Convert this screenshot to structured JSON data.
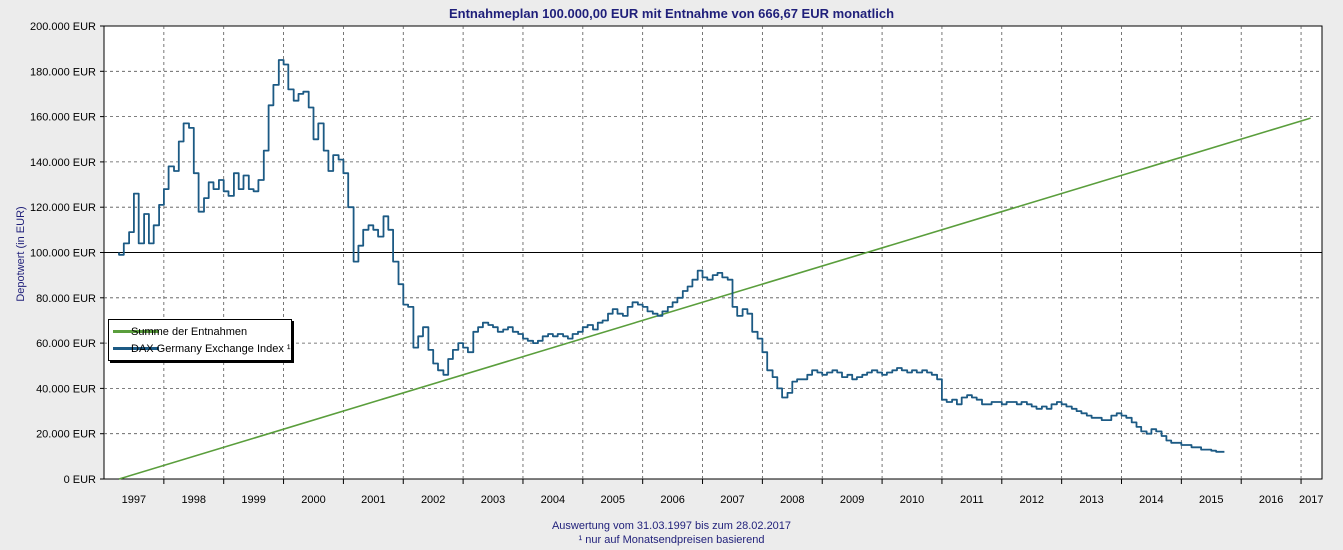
{
  "chart_data": {
    "type": "line",
    "title": "Entnahmeplan 100.000,00 EUR mit Entnahme von 666,67 EUR monatlich",
    "ylabel": "Depotwert (in EUR)",
    "xlabel": "",
    "ylim": [
      0,
      200000
    ],
    "xlim": [
      1997.0,
      2017.35
    ],
    "y_ticks": [
      0,
      20000,
      40000,
      60000,
      80000,
      100000,
      120000,
      140000,
      160000,
      180000,
      200000
    ],
    "y_tick_labels": [
      "0 EUR",
      "20.000 EUR",
      "40.000 EUR",
      "60.000 EUR",
      "80.000 EUR",
      "100.000 EUR",
      "120.000 EUR",
      "140.000 EUR",
      "160.000 EUR",
      "180.000 EUR",
      "200.000 EUR"
    ],
    "x_tick_labels": [
      "1997",
      "1998",
      "1999",
      "2000",
      "2001",
      "2002",
      "2003",
      "2004",
      "2005",
      "2006",
      "2007",
      "2008",
      "2009",
      "2010",
      "2011",
      "2012",
      "2013",
      "2014",
      "2015",
      "2016",
      "2017"
    ],
    "reference_line": {
      "y": 100000
    },
    "grid": true,
    "legend_position": "center-left",
    "series": [
      {
        "name": "Summe der Entnahmen",
        "color": "#5a9e3c",
        "points": [
          [
            1997.25,
            0
          ],
          [
            2017.16,
            159334
          ]
        ]
      },
      {
        "name": "DAX Germany Exchange Index ¹",
        "color": "#1c5a84",
        "points": [
          [
            1997.25,
            100000
          ],
          [
            1997.33,
            99000
          ],
          [
            1997.42,
            104000
          ],
          [
            1997.5,
            109000
          ],
          [
            1997.58,
            126000
          ],
          [
            1997.67,
            104000
          ],
          [
            1997.75,
            117000
          ],
          [
            1997.83,
            104000
          ],
          [
            1997.92,
            112000
          ],
          [
            1998.0,
            121000
          ],
          [
            1998.08,
            128000
          ],
          [
            1998.17,
            138000
          ],
          [
            1998.25,
            136000
          ],
          [
            1998.33,
            149000
          ],
          [
            1998.42,
            157000
          ],
          [
            1998.5,
            155000
          ],
          [
            1998.58,
            135000
          ],
          [
            1998.67,
            118000
          ],
          [
            1998.75,
            124000
          ],
          [
            1998.83,
            131000
          ],
          [
            1998.92,
            128000
          ],
          [
            1999.0,
            132000
          ],
          [
            1999.08,
            127000
          ],
          [
            1999.17,
            125000
          ],
          [
            1999.25,
            135000
          ],
          [
            1999.33,
            128000
          ],
          [
            1999.42,
            134000
          ],
          [
            1999.5,
            128000
          ],
          [
            1999.58,
            127000
          ],
          [
            1999.67,
            132000
          ],
          [
            1999.75,
            145000
          ],
          [
            1999.83,
            165000
          ],
          [
            1999.92,
            174000
          ],
          [
            2000.0,
            185000
          ],
          [
            2000.08,
            183000
          ],
          [
            2000.17,
            172000
          ],
          [
            2000.25,
            167000
          ],
          [
            2000.33,
            170000
          ],
          [
            2000.42,
            171000
          ],
          [
            2000.5,
            164000
          ],
          [
            2000.58,
            150000
          ],
          [
            2000.67,
            157000
          ],
          [
            2000.75,
            145000
          ],
          [
            2000.83,
            136000
          ],
          [
            2000.92,
            143000
          ],
          [
            2001.0,
            141000
          ],
          [
            2001.08,
            135000
          ],
          [
            2001.17,
            120000
          ],
          [
            2001.25,
            96000
          ],
          [
            2001.33,
            103000
          ],
          [
            2001.42,
            110000
          ],
          [
            2001.5,
            112000
          ],
          [
            2001.58,
            110000
          ],
          [
            2001.67,
            107000
          ],
          [
            2001.75,
            116000
          ],
          [
            2001.83,
            110000
          ],
          [
            2001.92,
            96000
          ],
          [
            2002.0,
            86000
          ],
          [
            2002.08,
            77000
          ],
          [
            2002.17,
            76000
          ],
          [
            2002.25,
            58000
          ],
          [
            2002.33,
            63000
          ],
          [
            2002.42,
            67000
          ],
          [
            2002.5,
            57000
          ],
          [
            2002.58,
            51000
          ],
          [
            2002.67,
            48000
          ],
          [
            2002.75,
            46000
          ],
          [
            2002.83,
            53000
          ],
          [
            2002.92,
            57000
          ],
          [
            2003.0,
            60000
          ],
          [
            2003.08,
            58000
          ],
          [
            2003.17,
            56000
          ],
          [
            2003.25,
            65000
          ],
          [
            2003.33,
            67000
          ],
          [
            2003.42,
            69000
          ],
          [
            2003.5,
            68000
          ],
          [
            2003.58,
            67000
          ],
          [
            2003.67,
            65000
          ],
          [
            2003.75,
            66000
          ],
          [
            2003.83,
            67000
          ],
          [
            2003.92,
            65000
          ],
          [
            2004.0,
            64000
          ],
          [
            2004.08,
            62000
          ],
          [
            2004.17,
            61000
          ],
          [
            2004.25,
            60000
          ],
          [
            2004.33,
            61000
          ],
          [
            2004.42,
            63000
          ],
          [
            2004.5,
            64000
          ],
          [
            2004.58,
            63000
          ],
          [
            2004.67,
            64000
          ],
          [
            2004.75,
            63000
          ],
          [
            2004.83,
            62000
          ],
          [
            2004.92,
            64000
          ],
          [
            2005.0,
            65000
          ],
          [
            2005.08,
            67000
          ],
          [
            2005.17,
            68000
          ],
          [
            2005.25,
            66000
          ],
          [
            2005.33,
            69000
          ],
          [
            2005.42,
            70000
          ],
          [
            2005.5,
            73000
          ],
          [
            2005.58,
            75000
          ],
          [
            2005.67,
            73000
          ],
          [
            2005.75,
            72000
          ],
          [
            2005.83,
            76000
          ],
          [
            2005.92,
            78000
          ],
          [
            2006.0,
            77000
          ],
          [
            2006.08,
            76000
          ],
          [
            2006.17,
            74000
          ],
          [
            2006.25,
            73000
          ],
          [
            2006.33,
            72000
          ],
          [
            2006.42,
            74000
          ],
          [
            2006.5,
            76000
          ],
          [
            2006.58,
            78000
          ],
          [
            2006.67,
            80000
          ],
          [
            2006.75,
            83000
          ],
          [
            2006.83,
            85000
          ],
          [
            2006.92,
            88000
          ],
          [
            2007.0,
            92000
          ],
          [
            2007.08,
            89000
          ],
          [
            2007.17,
            88000
          ],
          [
            2007.25,
            90000
          ],
          [
            2007.33,
            91000
          ],
          [
            2007.42,
            89000
          ],
          [
            2007.5,
            88000
          ],
          [
            2007.58,
            76000
          ],
          [
            2007.67,
            72000
          ],
          [
            2007.75,
            75000
          ],
          [
            2007.83,
            73000
          ],
          [
            2007.92,
            65000
          ],
          [
            2008.0,
            62000
          ],
          [
            2008.08,
            56000
          ],
          [
            2008.17,
            48000
          ],
          [
            2008.25,
            45000
          ],
          [
            2008.33,
            40000
          ],
          [
            2008.42,
            36000
          ],
          [
            2008.5,
            38000
          ],
          [
            2008.58,
            43000
          ],
          [
            2008.67,
            44000
          ],
          [
            2008.75,
            44000
          ],
          [
            2008.83,
            46000
          ],
          [
            2008.92,
            48000
          ],
          [
            2009.0,
            47000
          ],
          [
            2009.08,
            46000
          ],
          [
            2009.17,
            47000
          ],
          [
            2009.25,
            48000
          ],
          [
            2009.33,
            47000
          ],
          [
            2009.42,
            45000
          ],
          [
            2009.5,
            46000
          ],
          [
            2009.58,
            44000
          ],
          [
            2009.67,
            45000
          ],
          [
            2009.75,
            46000
          ],
          [
            2009.83,
            47000
          ],
          [
            2009.92,
            48000
          ],
          [
            2010.0,
            47000
          ],
          [
            2010.08,
            46000
          ],
          [
            2010.17,
            47000
          ],
          [
            2010.25,
            48000
          ],
          [
            2010.33,
            49000
          ],
          [
            2010.42,
            48000
          ],
          [
            2010.5,
            47000
          ],
          [
            2010.58,
            48000
          ],
          [
            2010.67,
            47000
          ],
          [
            2010.75,
            48000
          ],
          [
            2010.83,
            47000
          ],
          [
            2010.92,
            46000
          ],
          [
            2011.0,
            44000
          ],
          [
            2011.08,
            35000
          ],
          [
            2011.17,
            34000
          ],
          [
            2011.25,
            35000
          ],
          [
            2011.33,
            33000
          ],
          [
            2011.42,
            36000
          ],
          [
            2011.5,
            37000
          ],
          [
            2011.58,
            36000
          ],
          [
            2011.67,
            35000
          ],
          [
            2011.75,
            33000
          ],
          [
            2011.83,
            33000
          ],
          [
            2011.92,
            34000
          ],
          [
            2012.0,
            34000
          ],
          [
            2012.08,
            33000
          ],
          [
            2012.17,
            34000
          ],
          [
            2012.25,
            34000
          ],
          [
            2012.33,
            33000
          ],
          [
            2012.42,
            34000
          ],
          [
            2012.5,
            33000
          ],
          [
            2012.58,
            32000
          ],
          [
            2012.67,
            31000
          ],
          [
            2012.75,
            32000
          ],
          [
            2012.83,
            31000
          ],
          [
            2012.92,
            33000
          ],
          [
            2013.0,
            34000
          ],
          [
            2013.08,
            33000
          ],
          [
            2013.17,
            32000
          ],
          [
            2013.25,
            31000
          ],
          [
            2013.33,
            30000
          ],
          [
            2013.42,
            29000
          ],
          [
            2013.5,
            28000
          ],
          [
            2013.58,
            27000
          ],
          [
            2013.67,
            27000
          ],
          [
            2013.75,
            26000
          ],
          [
            2013.83,
            26000
          ],
          [
            2013.92,
            28000
          ],
          [
            2014.0,
            29000
          ],
          [
            2014.08,
            28000
          ],
          [
            2014.17,
            27000
          ],
          [
            2014.25,
            25000
          ],
          [
            2014.33,
            23000
          ],
          [
            2014.42,
            21000
          ],
          [
            2014.5,
            20000
          ],
          [
            2014.58,
            22000
          ],
          [
            2014.67,
            21000
          ],
          [
            2014.75,
            19000
          ],
          [
            2014.83,
            17000
          ],
          [
            2014.92,
            16000
          ],
          [
            2015.0,
            16000
          ],
          [
            2015.08,
            15000
          ],
          [
            2015.17,
            15000
          ],
          [
            2015.25,
            14000
          ],
          [
            2015.33,
            14000
          ],
          [
            2015.42,
            13000
          ],
          [
            2015.5,
            13000
          ],
          [
            2015.58,
            12500
          ],
          [
            2015.67,
            12000
          ]
        ]
      }
    ],
    "footer": [
      "Auswertung vom 31.03.1997 bis zum 28.02.2017",
      "¹ nur auf Monatsendpreisen basierend"
    ]
  }
}
